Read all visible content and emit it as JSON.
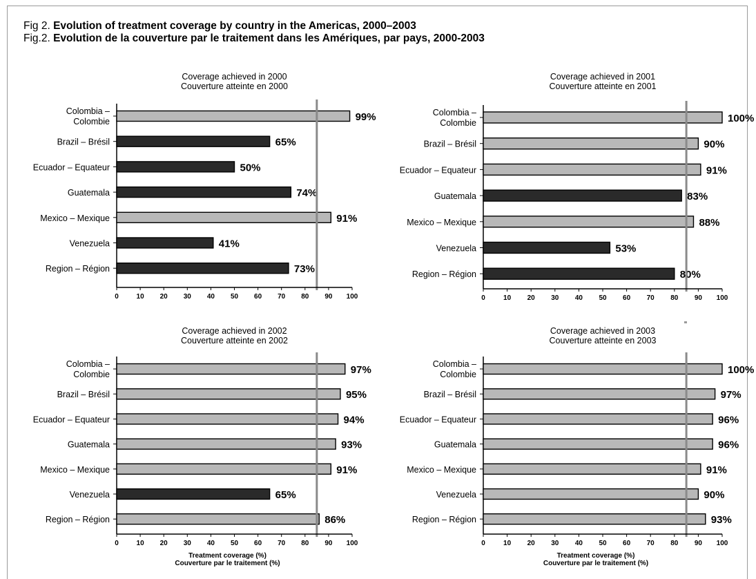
{
  "figure": {
    "title_en_prefix": "Fig 2.",
    "title_en": "Evolution of treatment coverage by country in the Americas, 2000–2003",
    "title_fr_prefix": "Fig.2.",
    "title_fr": "Evolution de la couverture par le traitement dans les Amériques, par pays, 2000-2003"
  },
  "colors": {
    "dark_bar": "#2a2a2a",
    "light_bar": "#b8b8b8",
    "bar_outline": "#000000",
    "reference_line": "#8a8a8a"
  },
  "chart_data": [
    {
      "type": "bar",
      "orientation": "horizontal",
      "title": [
        "Coverage achieved in 2000",
        "Couverture atteinte en 2000"
      ],
      "categories": [
        [
          "Colombia –",
          "Colombie"
        ],
        [
          "Brazil – Brésil"
        ],
        [
          "Ecuador – Equateur"
        ],
        [
          "Guatemala"
        ],
        [
          "Mexico – Mexique"
        ],
        [
          "Venezuela"
        ],
        [
          "Region – Région"
        ]
      ],
      "values": [
        99,
        65,
        50,
        74,
        91,
        41,
        73
      ],
      "labels": [
        "99%",
        "65%",
        "50%",
        "74%",
        "91%",
        "41%",
        "73%"
      ],
      "shade": [
        "light",
        "dark",
        "dark",
        "dark",
        "light",
        "dark",
        "dark"
      ],
      "reference_line": 85,
      "xlim": [
        0,
        100
      ],
      "xticks": [
        "0",
        "10",
        "20",
        "30",
        "40",
        "50",
        "60",
        "70",
        "80",
        "90",
        "100"
      ],
      "xlabel": []
    },
    {
      "type": "bar",
      "orientation": "horizontal",
      "title": [
        "Coverage achieved in 2001",
        "Couverture atteinte en 2001"
      ],
      "categories": [
        [
          "Colombia –",
          "Colombie"
        ],
        [
          "Brazil – Brésil"
        ],
        [
          "Ecuador – Equateur"
        ],
        [
          "Guatemala"
        ],
        [
          "Mexico – Mexique"
        ],
        [
          "Venezuela"
        ],
        [
          "Region – Région"
        ]
      ],
      "values": [
        100,
        90,
        91,
        83,
        88,
        53,
        80
      ],
      "labels": [
        "100%",
        "90%",
        "91%",
        "83%",
        "88%",
        "53%",
        "80%"
      ],
      "shade": [
        "light",
        "light",
        "light",
        "dark",
        "light",
        "dark",
        "dark"
      ],
      "reference_line": 85,
      "xlim": [
        0,
        100
      ],
      "xticks": [
        "0",
        "10",
        "20",
        "30",
        "40",
        "50",
        "60",
        "70",
        "80",
        "90",
        "100"
      ],
      "xlabel": []
    },
    {
      "type": "bar",
      "orientation": "horizontal",
      "title": [
        "Coverage achieved in 2002",
        "Couverture atteinte en 2002"
      ],
      "categories": [
        [
          "Colombia –",
          "Colombie"
        ],
        [
          "Brazil – Brésil"
        ],
        [
          "Ecuador – Equateur"
        ],
        [
          "Guatemala"
        ],
        [
          "Mexico – Mexique"
        ],
        [
          "Venezuela"
        ],
        [
          "Region – Région"
        ]
      ],
      "values": [
        97,
        95,
        94,
        93,
        91,
        65,
        86
      ],
      "labels": [
        "97%",
        "95%",
        "94%",
        "93%",
        "91%",
        "65%",
        "86%"
      ],
      "shade": [
        "light",
        "light",
        "light",
        "light",
        "light",
        "dark",
        "light"
      ],
      "reference_line": 85,
      "xlim": [
        0,
        100
      ],
      "xticks": [
        "0",
        "10",
        "20",
        "30",
        "40",
        "50",
        "60",
        "70",
        "80",
        "90",
        "100"
      ],
      "xlabel": [
        "Treatment coverage (%)",
        "Couverture par le traitement (%)"
      ]
    },
    {
      "type": "bar",
      "orientation": "horizontal",
      "title": [
        "Coverage achieved in 2003",
        "Couverture atteinte en 2003"
      ],
      "categories": [
        [
          "Colombia –",
          "Colombie"
        ],
        [
          "Brazil – Brésil"
        ],
        [
          "Ecuador – Equateur"
        ],
        [
          "Guatemala"
        ],
        [
          "Mexico – Mexique"
        ],
        [
          "Venezuela"
        ],
        [
          "Region – Région"
        ]
      ],
      "values": [
        100,
        97,
        96,
        96,
        91,
        90,
        93
      ],
      "labels": [
        "100%",
        "97%",
        "96%",
        "96%",
        "91%",
        "90%",
        "93%"
      ],
      "shade": [
        "light",
        "light",
        "light",
        "light",
        "light",
        "light",
        "light"
      ],
      "reference_line": 85,
      "xlim": [
        0,
        100
      ],
      "xticks": [
        "0",
        "10",
        "20",
        "30",
        "40",
        "50",
        "60",
        "70",
        "80",
        "90",
        "100"
      ],
      "xlabel": [
        "Treatment coverage (%)",
        "Couverture par le traitement (%)"
      ]
    }
  ]
}
